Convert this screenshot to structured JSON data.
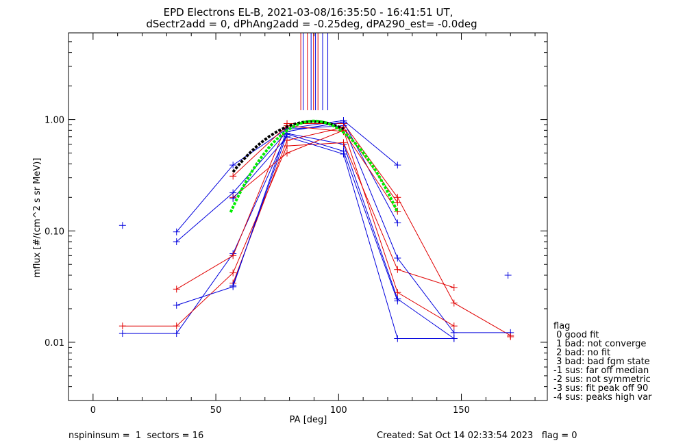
{
  "chart_data": {
    "type": "line",
    "title_line1": "EPD Electrons EL-B, 2021-03-08/16:35:50 - 16:41:51 UT,",
    "title_line2": "dSectr2add = 0, dPhAng2add = -0.25deg, dPA290_est=  -0.0deg",
    "xlabel": "PA [deg]",
    "ylabel": "mflux [#/(cm^2 s sr MeV)]",
    "xlim": [
      -10,
      185
    ],
    "ylim": [
      0.003,
      6.0
    ],
    "yscale": "log",
    "x_ticks": [
      0,
      50,
      100,
      150
    ],
    "x_tick_labels": [
      "0",
      "50",
      "100",
      "150"
    ],
    "y_ticks": [
      0.01,
      0.1,
      1.0
    ],
    "y_tick_labels": [
      "0.01",
      "0.10",
      "1.00"
    ],
    "colors": {
      "red": "#e00000",
      "blue": "#0000dd",
      "green": "#00ee00",
      "black": "#000000"
    },
    "series": [
      {
        "color": "#0000dd",
        "points": [
          [
            12,
            0.012
          ],
          [
            34,
            0.012
          ],
          [
            57,
            0.0625
          ],
          [
            79,
            0.75
          ],
          [
            102,
            0.6
          ],
          [
            124,
            0.0245
          ],
          [
            147,
            0.0108
          ]
        ]
      },
      {
        "color": "#e00000",
        "points": [
          [
            12,
            0.014
          ],
          [
            34,
            0.014
          ],
          [
            57,
            0.042
          ],
          [
            79,
            0.58
          ],
          [
            102,
            0.62
          ],
          [
            124,
            0.045
          ],
          [
            147,
            0.031
          ]
        ]
      },
      {
        "color": "#0000dd",
        "points": [
          [
            34,
            0.098
          ],
          [
            57,
            0.39
          ],
          [
            79,
            0.83
          ],
          [
            102,
            0.98
          ],
          [
            124,
            0.39
          ]
        ]
      },
      {
        "color": "#e00000",
        "points": [
          [
            34,
            0.03
          ],
          [
            57,
            0.06
          ],
          [
            79,
            0.92
          ],
          [
            102,
            0.92
          ],
          [
            124,
            0.2
          ],
          [
            147,
            0.0225
          ],
          [
            170,
            0.0115
          ]
        ]
      },
      {
        "color": "#0000dd",
        "points": [
          [
            34,
            0.08
          ],
          [
            57,
            0.22
          ],
          [
            79,
            0.78
          ],
          [
            102,
            0.95
          ],
          [
            124,
            0.118
          ]
        ]
      },
      {
        "color": "#0000dd",
        "points": [
          [
            34,
            0.0215
          ],
          [
            57,
            0.0315
          ],
          [
            79,
            0.82
          ],
          [
            102,
            0.88
          ],
          [
            124,
            0.057
          ],
          [
            147,
            0.0122
          ],
          [
            170,
            0.0122
          ]
        ]
      },
      {
        "color": "#e00000",
        "points": [
          [
            57,
            0.31
          ],
          [
            79,
            0.88
          ],
          [
            102,
            0.78
          ],
          [
            124,
            0.15
          ]
        ]
      },
      {
        "color": "#e00000",
        "points": [
          [
            57,
            0.2
          ],
          [
            79,
            0.5
          ],
          [
            102,
            0.8
          ],
          [
            124,
            0.028
          ],
          [
            147,
            0.014
          ]
        ]
      },
      {
        "color": "#0000dd",
        "points": [
          [
            57,
            0.195
          ],
          [
            79,
            0.7
          ],
          [
            102,
            0.49
          ],
          [
            124,
            0.0108
          ],
          [
            147,
            0.0108
          ]
        ]
      },
      {
        "color": "#e00000",
        "points": [
          [
            57,
            0.034
          ],
          [
            79,
            0.65
          ],
          [
            102,
            0.85
          ],
          [
            124,
            0.18
          ]
        ]
      },
      {
        "color": "#0000dd",
        "points": [
          [
            57,
            0.0325
          ],
          [
            79,
            0.74
          ],
          [
            102,
            0.52
          ],
          [
            124,
            0.0235
          ]
        ]
      },
      {
        "color": "#e00000",
        "points": [
          [
            170,
            0.0112
          ]
        ]
      }
    ],
    "isolated_points": [
      {
        "color": "#0000dd",
        "x": 12,
        "y": 0.112
      },
      {
        "color": "#0000dd",
        "x": 169,
        "y": 0.04
      }
    ],
    "fit_black": {
      "color": "#000000",
      "x_range": [
        57,
        102
      ],
      "peak_x": 89.5,
      "peak_y": 0.96,
      "sigma": 22.5,
      "baseline": 0.0
    },
    "fit_green": {
      "color": "#00ee00",
      "x_range": [
        56,
        124
      ],
      "peak_x": 90,
      "peak_y": 0.97,
      "sigma": 17.5,
      "baseline": 0.0
    },
    "peak_markers": [
      {
        "x": 84.6,
        "color": "#e00000"
      },
      {
        "x": 85.6,
        "color": "#0000dd"
      },
      {
        "x": 87.3,
        "color": "#e00000"
      },
      {
        "x": 88.8,
        "color": "#0000dd"
      },
      {
        "x": 89.8,
        "color": "#e00000"
      },
      {
        "x": 90.6,
        "color": "#0000dd"
      },
      {
        "x": 91.6,
        "color": "#e00000"
      },
      {
        "x": 93.5,
        "color": "#0000dd"
      },
      {
        "x": 95.6,
        "color": "#0000dd"
      }
    ]
  },
  "legend": {
    "lines": [
      "flag",
      " 0 good fit",
      " 1 bad: not converge",
      " 2 bad: no fit",
      " 3 bad: bad fgm state",
      "-1 sus: far off median",
      "-2 sus: not symmetric",
      "-3 sus: fit peak off 90",
      "-4 sus: peaks high var"
    ]
  },
  "footer": {
    "left": "nspininsum =  1  sectors = 16",
    "right": "Created: Sat Oct 14 02:33:54 2023   flag = 0"
  }
}
